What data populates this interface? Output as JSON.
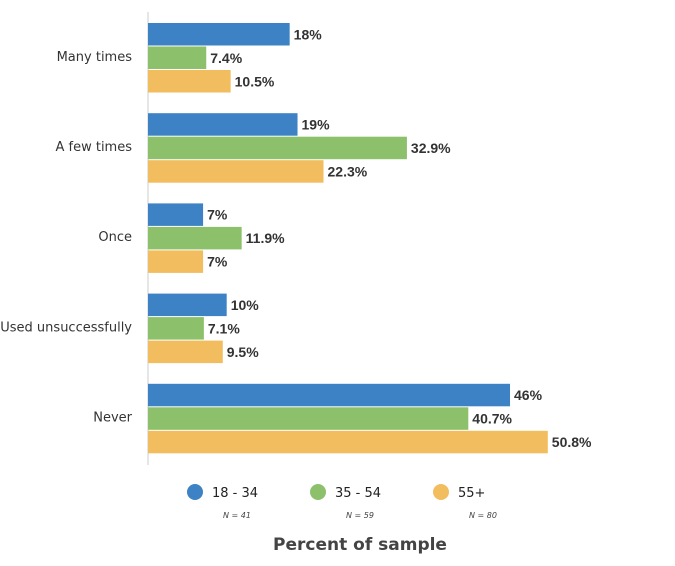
{
  "chart_data": {
    "type": "bar",
    "orientation": "horizontal",
    "categories": [
      "Many times",
      "A few times",
      "Once",
      "Used unsuccessfully",
      "Never"
    ],
    "series": [
      {
        "name": "18 - 34",
        "n_label": "N = 41",
        "color": "#3d82c4",
        "values": [
          18,
          19,
          7,
          10,
          46
        ],
        "labels": [
          "18%",
          "19%",
          "7%",
          "10%",
          "46%"
        ]
      },
      {
        "name": "35 - 54",
        "n_label": "N = 59",
        "color": "#8dc06b",
        "values": [
          7.4,
          32.9,
          11.9,
          7.1,
          40.7
        ],
        "labels": [
          "7.4%",
          "32.9%",
          "11.9%",
          "7.1%",
          "40.7%"
        ]
      },
      {
        "name": "55+",
        "n_label": "N = 80",
        "color": "#f2bd5e",
        "values": [
          10.5,
          22.3,
          7,
          9.5,
          50.8
        ],
        "labels": [
          "10.5%",
          "22.3%",
          "7%",
          "9.5%",
          "50.8%"
        ]
      }
    ],
    "xlabel": "Percent of sample",
    "legend": "bottom",
    "grid": false
  }
}
